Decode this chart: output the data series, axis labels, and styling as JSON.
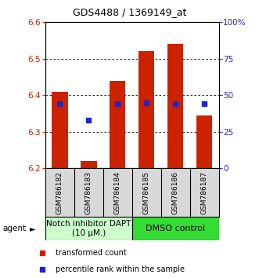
{
  "title": "GDS4488 / 1369149_at",
  "samples": [
    "GSM786182",
    "GSM786183",
    "GSM786184",
    "GSM786185",
    "GSM786186",
    "GSM786187"
  ],
  "bar_bottom": 6.2,
  "bar_tops": [
    6.41,
    6.22,
    6.44,
    6.52,
    6.54,
    6.345
  ],
  "percentile_ranks": [
    0.44,
    0.33,
    0.44,
    0.445,
    0.44,
    0.44
  ],
  "ylim": [
    6.2,
    6.6
  ],
  "left_yticks": [
    6.2,
    6.3,
    6.4,
    6.5,
    6.6
  ],
  "right_yticks_vals": [
    0,
    25,
    50,
    75,
    100
  ],
  "right_ytick_positions": [
    6.2,
    6.3,
    6.4,
    6.5,
    6.6
  ],
  "bar_color": "#cc2200",
  "blue_color": "#2222cc",
  "bg_color": "#d8d8d8",
  "group1_label": "Notch inhibitor DAPT\n(10 μM.)",
  "group2_label": "DMSO control",
  "group1_color": "#ccffcc",
  "group2_color": "#33dd33",
  "legend_red": "transformed count",
  "legend_blue": "percentile rank within the sample",
  "agent_label": "agent",
  "bar_width": 0.55,
  "title_fontsize": 9,
  "tick_fontsize": 7.5,
  "sample_fontsize": 6.5,
  "group_fontsize": 7.5,
  "legend_fontsize": 7
}
